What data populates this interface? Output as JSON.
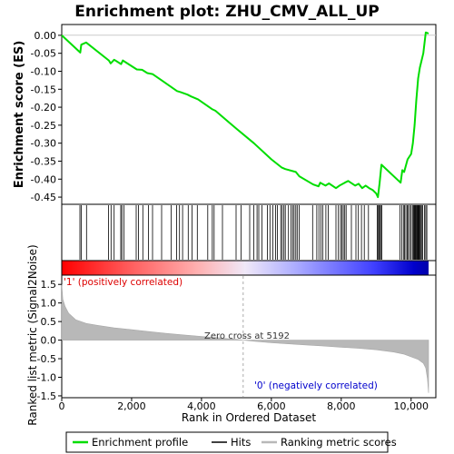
{
  "chart_data": {
    "type": "line",
    "title": "Enrichment plot: ZHU_CMV_ALL_UP",
    "xlabel": "Rank in Ordered Dataset",
    "ylabel_top": "Enrichment score (ES)",
    "ylabel_bottom": "Ranked list metric (Signal2Noise)",
    "x_ticks": [
      0,
      2000,
      4000,
      6000,
      8000,
      10000
    ],
    "x_tick_labels": [
      "0",
      "2,000",
      "4,000",
      "6,000",
      "8,000",
      "10,000"
    ],
    "xlim": [
      0,
      10500
    ],
    "es_ylim": [
      -0.47,
      0.03
    ],
    "es_ticks": [
      0.0,
      -0.05,
      -0.1,
      -0.15,
      -0.2,
      -0.25,
      -0.3,
      -0.35,
      -0.4,
      -0.45
    ],
    "es_tick_labels": [
      "0.00",
      "-0.05",
      "-0.10",
      "-0.15",
      "-0.20",
      "-0.25",
      "-0.30",
      "-0.35",
      "-0.40",
      "-0.45"
    ],
    "metric_ylim": [
      -1.55,
      1.75
    ],
    "metric_ticks": [
      1.5,
      1.0,
      0.5,
      0.0,
      -0.5,
      -1.0,
      -1.5
    ],
    "metric_tick_labels": [
      "1.5",
      "1.0",
      "0.5",
      "0.0",
      "-0.5",
      "-1.0",
      "-1.5"
    ],
    "zero_cross_label": "Zero cross at 5192",
    "zero_cross": 5192,
    "positive_label": "'1' (positively correlated)",
    "negative_label": "'0' (negatively correlated)",
    "legend": {
      "enrichment": "Enrichment profile",
      "hits": "Hits",
      "metric": "Ranking metric scores"
    },
    "colors": {
      "enrichment": "#00dd00",
      "hits": "#000000",
      "metric_fill": "#b8b8b8",
      "positive_text": "#dd0000",
      "negative_text": "#0000cc"
    },
    "series": [
      {
        "name": "Enrichment profile",
        "x": [
          0,
          530,
          560,
          700,
          1350,
          1400,
          1500,
          1700,
          1750,
          2150,
          2300,
          2450,
          2600,
          2900,
          3300,
          3400,
          3600,
          3700,
          3900,
          4300,
          4400,
          5000,
          5500,
          6000,
          6300,
          6400,
          6700,
          6800,
          7200,
          7350,
          7400,
          7550,
          7650,
          7850,
          7950,
          8100,
          8200,
          8400,
          8500,
          8600,
          8700,
          8800,
          8900,
          9000,
          9050,
          9100,
          9150,
          9700,
          9750,
          9800,
          9900,
          10000,
          10050,
          10100,
          10150,
          10200,
          10250,
          10300,
          10350,
          10420,
          10500
        ],
        "y": [
          0.0,
          -0.048,
          -0.026,
          -0.02,
          -0.07,
          -0.078,
          -0.068,
          -0.08,
          -0.07,
          -0.095,
          -0.096,
          -0.105,
          -0.108,
          -0.128,
          -0.155,
          -0.158,
          -0.165,
          -0.17,
          -0.178,
          -0.205,
          -0.21,
          -0.26,
          -0.3,
          -0.345,
          -0.368,
          -0.372,
          -0.38,
          -0.392,
          -0.415,
          -0.42,
          -0.41,
          -0.418,
          -0.412,
          -0.425,
          -0.418,
          -0.41,
          -0.405,
          -0.418,
          -0.413,
          -0.425,
          -0.418,
          -0.425,
          -0.43,
          -0.44,
          -0.45,
          -0.41,
          -0.36,
          -0.41,
          -0.375,
          -0.38,
          -0.345,
          -0.33,
          -0.3,
          -0.25,
          -0.18,
          -0.12,
          -0.09,
          -0.07,
          -0.05,
          0.008,
          0.005
        ]
      },
      {
        "name": "Ranking metric scores",
        "x": [
          0,
          30,
          100,
          200,
          400,
          700,
          1000,
          1500,
          2000,
          2500,
          3000,
          3500,
          4000,
          4500,
          5000,
          5192,
          5500,
          6000,
          6500,
          7000,
          7500,
          8000,
          8500,
          9000,
          9500,
          9800,
          10000,
          10200,
          10350,
          10420,
          10470,
          10500
        ],
        "y": [
          1.5,
          1.1,
          0.9,
          0.72,
          0.55,
          0.45,
          0.4,
          0.33,
          0.28,
          0.23,
          0.18,
          0.14,
          0.1,
          0.06,
          0.02,
          0.0,
          -0.03,
          -0.07,
          -0.1,
          -0.13,
          -0.16,
          -0.19,
          -0.22,
          -0.26,
          -0.32,
          -0.38,
          -0.45,
          -0.52,
          -0.62,
          -0.75,
          -1.05,
          -1.42
        ]
      }
    ],
    "hits": [
      520,
      560,
      710,
      1340,
      1410,
      1500,
      1690,
      1720,
      1780,
      2130,
      2200,
      2320,
      2480,
      2600,
      2860,
      3130,
      3290,
      3370,
      3460,
      3620,
      3730,
      3880,
      4180,
      4310,
      4360,
      4600,
      4990,
      5130,
      5380,
      5500,
      5590,
      5640,
      5730,
      5890,
      5960,
      6040,
      6120,
      6170,
      6270,
      6310,
      6360,
      6400,
      6490,
      6560,
      6610,
      6650,
      6700,
      6740,
      6800,
      7180,
      7300,
      7360,
      7420,
      7470,
      7560,
      7630,
      7850,
      7920,
      7980,
      8020,
      8060,
      8100,
      8140,
      8290,
      8420,
      8490,
      8580,
      8660,
      8780,
      9030,
      9050,
      9080,
      9100,
      9130,
      9160,
      9680,
      9730,
      9780,
      9810,
      9850,
      9890,
      9920,
      9960,
      10000,
      10040,
      10070,
      10090,
      10110,
      10130,
      10150,
      10170,
      10190,
      10210,
      10230,
      10250,
      10270,
      10300,
      10330,
      10380,
      10420,
      10450
    ]
  }
}
